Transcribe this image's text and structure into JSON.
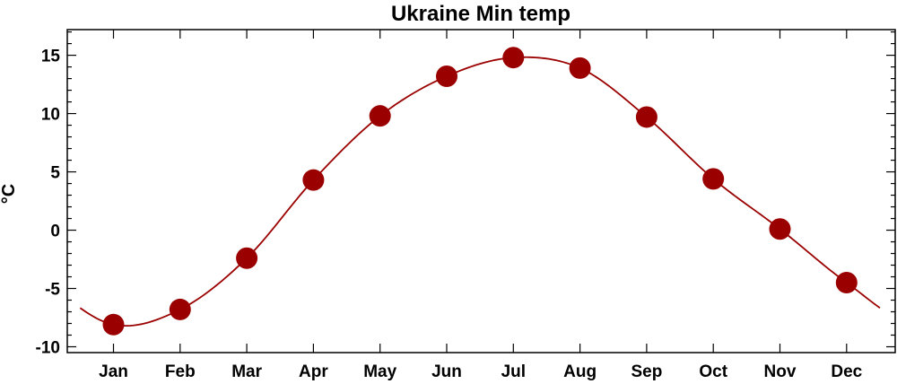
{
  "chart_data": {
    "type": "line",
    "title": "Ukraine Min temp",
    "xlabel": "",
    "ylabel": "°C",
    "categories": [
      "Jan",
      "Feb",
      "Mar",
      "Apr",
      "May",
      "Jun",
      "Jul",
      "Aug",
      "Sep",
      "Oct",
      "Nov",
      "Dec"
    ],
    "series": [
      {
        "values": [
          -8.1,
          -6.8,
          -2.4,
          4.3,
          9.8,
          13.2,
          14.8,
          13.9,
          9.7,
          4.4,
          0.1,
          -4.5
        ],
        "color": "#9b0000"
      }
    ],
    "ylim": [
      -10.5,
      17.2
    ],
    "yticks": [
      -10,
      -5,
      0,
      5,
      10,
      15
    ],
    "grid": false,
    "legend": "none"
  }
}
